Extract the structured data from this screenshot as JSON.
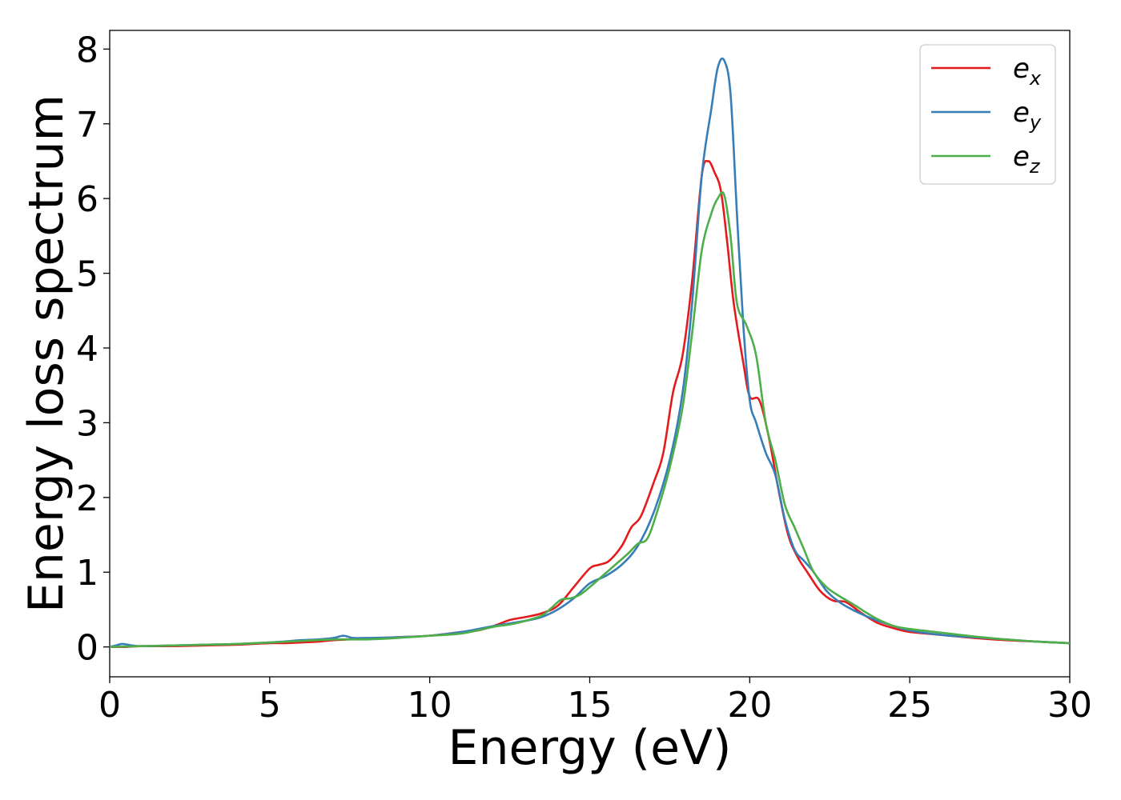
{
  "chart_data": {
    "type": "line",
    "title": "",
    "xlabel": "Energy (eV)",
    "ylabel": "Energy loss spectrum",
    "xlim": [
      0,
      30
    ],
    "ylim": [
      -0.4,
      8.25
    ],
    "xticks": [
      "0",
      "5",
      "10",
      "15",
      "20",
      "25",
      "30"
    ],
    "yticks": [
      "0",
      "1",
      "2",
      "3",
      "4",
      "5",
      "6",
      "7",
      "8"
    ],
    "grid": false,
    "legend_position": "top-right",
    "series": [
      {
        "name": "e",
        "subscript": "x",
        "color": "#e41a1c",
        "x": [
          0,
          0.5,
          1,
          2,
          3,
          4,
          5,
          5.5,
          6,
          6.5,
          7,
          8,
          9,
          10,
          11,
          11.5,
          12,
          12.5,
          13,
          13.5,
          14,
          14.5,
          15,
          15.3,
          15.6,
          16,
          16.3,
          16.6,
          17,
          17.3,
          17.6,
          17.9,
          18.2,
          18.5,
          18.7,
          18.9,
          19.1,
          19.3,
          19.5,
          19.8,
          20.0,
          20.3,
          20.6,
          20.9,
          21.2,
          21.5,
          21.8,
          22.2,
          22.6,
          23,
          23.5,
          24,
          24.5,
          25,
          26,
          27,
          28,
          29,
          30
        ],
        "y": [
          0.0,
          0.0,
          0.01,
          0.01,
          0.02,
          0.03,
          0.05,
          0.05,
          0.06,
          0.07,
          0.09,
          0.11,
          0.13,
          0.15,
          0.2,
          0.22,
          0.28,
          0.36,
          0.4,
          0.45,
          0.55,
          0.8,
          1.05,
          1.1,
          1.15,
          1.35,
          1.6,
          1.75,
          2.2,
          2.6,
          3.4,
          3.9,
          4.9,
          6.3,
          6.5,
          6.35,
          6.1,
          5.4,
          4.6,
          3.8,
          3.35,
          3.3,
          2.8,
          2.1,
          1.5,
          1.2,
          1.0,
          0.75,
          0.62,
          0.6,
          0.45,
          0.32,
          0.25,
          0.2,
          0.16,
          0.12,
          0.09,
          0.07,
          0.05
        ]
      },
      {
        "name": "e",
        "subscript": "y",
        "color": "#377eb8",
        "x": [
          0,
          0.2,
          0.4,
          0.7,
          1,
          2,
          3,
          4,
          5,
          6,
          6.5,
          7,
          7.3,
          7.6,
          8,
          9,
          10,
          11,
          12,
          13,
          13.5,
          14,
          14.5,
          15,
          15.5,
          16,
          16.5,
          17,
          17.5,
          17.9,
          18.2,
          18.5,
          18.8,
          19.0,
          19.2,
          19.4,
          19.6,
          19.8,
          20.0,
          20.2,
          20.5,
          20.8,
          21.1,
          21.4,
          21.7,
          22.0,
          22.4,
          22.8,
          23.2,
          23.6,
          24,
          24.5,
          25,
          26,
          27,
          28,
          29,
          30
        ],
        "y": [
          0.0,
          0.02,
          0.04,
          0.02,
          0.01,
          0.02,
          0.03,
          0.04,
          0.06,
          0.09,
          0.1,
          0.12,
          0.15,
          0.12,
          0.12,
          0.13,
          0.15,
          0.2,
          0.28,
          0.35,
          0.4,
          0.5,
          0.65,
          0.85,
          0.95,
          1.1,
          1.35,
          1.8,
          2.5,
          3.4,
          4.6,
          6.3,
          7.2,
          7.75,
          7.85,
          7.4,
          5.8,
          4.3,
          3.3,
          3.0,
          2.6,
          2.3,
          1.7,
          1.3,
          1.15,
          1.0,
          0.75,
          0.6,
          0.5,
          0.42,
          0.35,
          0.28,
          0.22,
          0.16,
          0.13,
          0.1,
          0.07,
          0.05
        ]
      },
      {
        "name": "e",
        "subscript": "z",
        "color": "#4daf4a",
        "x": [
          0,
          1,
          2,
          3,
          4,
          5,
          6,
          7,
          8,
          9,
          10,
          11,
          12,
          12.5,
          13,
          13.5,
          13.8,
          14.1,
          14.4,
          14.7,
          15,
          15.4,
          15.8,
          16.2,
          16.5,
          16.8,
          17.1,
          17.5,
          17.9,
          18.2,
          18.5,
          18.8,
          19.0,
          19.2,
          19.4,
          19.6,
          19.9,
          20.2,
          20.5,
          20.8,
          21.1,
          21.4,
          21.7,
          22.0,
          22.4,
          22.8,
          23.2,
          23.6,
          24,
          24.5,
          25,
          26,
          27,
          28,
          29,
          30
        ],
        "y": [
          0.0,
          0.01,
          0.02,
          0.03,
          0.04,
          0.06,
          0.08,
          0.1,
          0.1,
          0.12,
          0.15,
          0.18,
          0.27,
          0.3,
          0.35,
          0.42,
          0.52,
          0.63,
          0.65,
          0.7,
          0.8,
          0.95,
          1.1,
          1.25,
          1.38,
          1.45,
          1.8,
          2.4,
          3.2,
          4.2,
          5.3,
          5.8,
          6.0,
          6.05,
          5.5,
          4.6,
          4.3,
          3.9,
          3.0,
          2.5,
          1.9,
          1.6,
          1.3,
          1.0,
          0.8,
          0.68,
          0.58,
          0.47,
          0.37,
          0.28,
          0.24,
          0.19,
          0.14,
          0.1,
          0.07,
          0.05
        ]
      }
    ]
  }
}
